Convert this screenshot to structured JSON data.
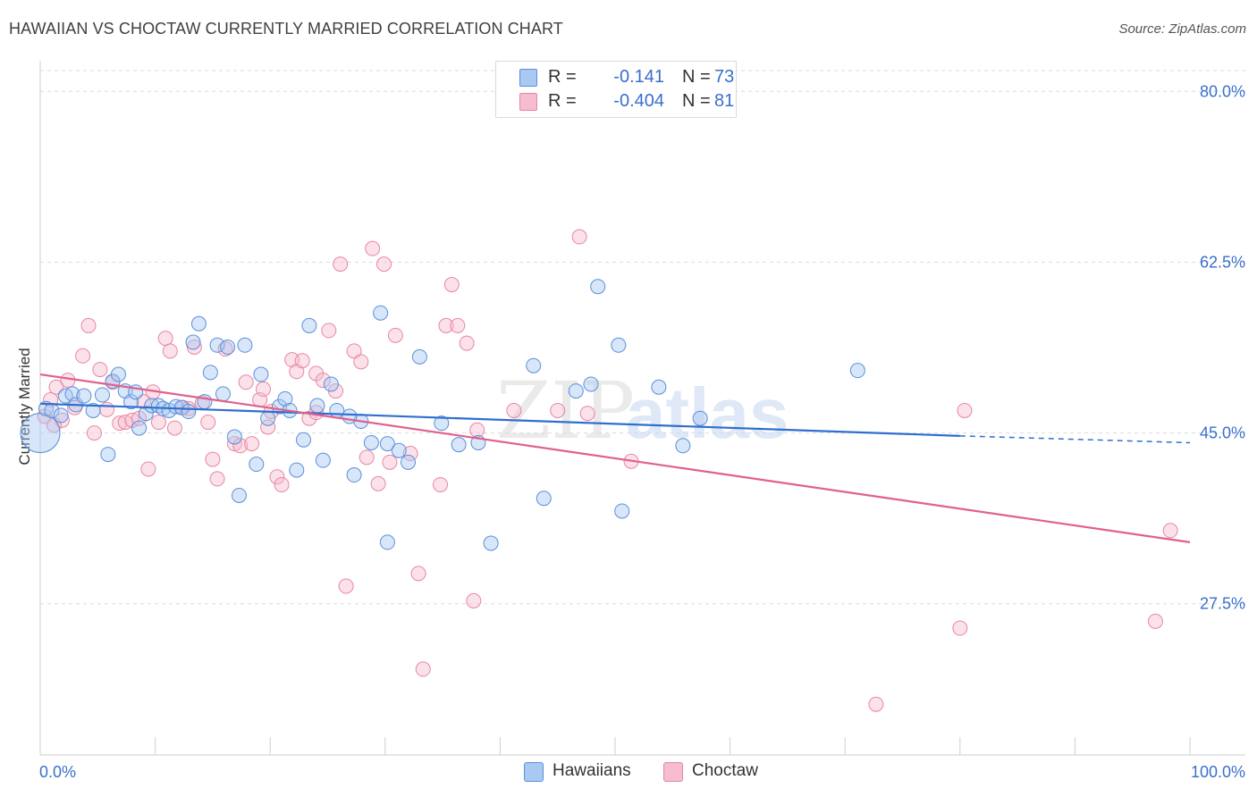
{
  "header": {
    "title": "HAWAIIAN VS CHOCTAW CURRENTLY MARRIED CORRELATION CHART",
    "source": "Source: ZipAtlas.com"
  },
  "legend": {
    "rows": [
      {
        "r_label": "R =",
        "r_value": "-0.141",
        "n_label": "N =",
        "n_value": "73"
      },
      {
        "r_label": "R =",
        "r_value": "-0.404",
        "n_label": "N =",
        "n_value": "81"
      }
    ]
  },
  "watermark": {
    "part1": "ZIP",
    "part2": "atlas"
  },
  "colors": {
    "hawaiians_fill": "#a9c8f2",
    "hawaiians_stroke": "#5b8fd9",
    "hawaiians_line": "#2e6fce",
    "choctaw_fill": "#f6bcd0",
    "choctaw_stroke": "#e8879f",
    "choctaw_line": "#e0608c",
    "tick_label": "#3a6fcc",
    "grid": "#dcdcdc"
  },
  "chart_data": {
    "type": "scatter",
    "title": "HAWAIIAN VS CHOCTAW CURRENTLY MARRIED CORRELATION CHART",
    "xlabel": "",
    "ylabel": "Currently Married",
    "xlim": [
      0,
      100
    ],
    "ylim": [
      12.0,
      82.5
    ],
    "x_tick_labels": [
      "0.0%",
      "100.0%"
    ],
    "y_ticks": [
      27.5,
      45.0,
      62.5,
      80.0
    ],
    "y_tick_labels": [
      "27.5%",
      "45.0%",
      "62.5%",
      "80.0%"
    ],
    "grid": "horizontal dashed",
    "legend_position": "top-center and bottom",
    "series": [
      {
        "name": "Hawaiians",
        "r": -0.141,
        "n": 73,
        "trend": {
          "x": [
            0,
            80
          ],
          "y": [
            48.0,
            44.7
          ],
          "dashed_to": [
            100,
            44.0
          ]
        },
        "points": [
          [
            0.2,
            45.0
          ],
          [
            0.5,
            47.5
          ],
          [
            1.0,
            47.3
          ],
          [
            1.8,
            46.8
          ],
          [
            2.2,
            48.8
          ],
          [
            2.8,
            49.0
          ],
          [
            3.1,
            47.9
          ],
          [
            3.8,
            48.8
          ],
          [
            4.6,
            47.3
          ],
          [
            5.4,
            48.9
          ],
          [
            5.9,
            42.8
          ],
          [
            6.3,
            50.3
          ],
          [
            6.8,
            51.0
          ],
          [
            7.4,
            49.3
          ],
          [
            7.9,
            48.2
          ],
          [
            8.3,
            49.2
          ],
          [
            8.6,
            45.5
          ],
          [
            9.2,
            47.0
          ],
          [
            9.7,
            47.8
          ],
          [
            10.3,
            47.8
          ],
          [
            10.7,
            47.5
          ],
          [
            11.2,
            47.3
          ],
          [
            11.8,
            47.7
          ],
          [
            12.3,
            47.6
          ],
          [
            12.9,
            47.2
          ],
          [
            13.3,
            54.3
          ],
          [
            13.8,
            56.2
          ],
          [
            14.3,
            48.2
          ],
          [
            14.8,
            51.2
          ],
          [
            15.4,
            54.0
          ],
          [
            15.9,
            49.0
          ],
          [
            16.3,
            53.8
          ],
          [
            16.9,
            44.6
          ],
          [
            17.3,
            38.6
          ],
          [
            17.8,
            54.0
          ],
          [
            18.8,
            41.8
          ],
          [
            19.2,
            51.0
          ],
          [
            19.8,
            46.5
          ],
          [
            20.8,
            47.7
          ],
          [
            21.3,
            48.5
          ],
          [
            21.7,
            47.3
          ],
          [
            22.3,
            41.2
          ],
          [
            22.9,
            44.3
          ],
          [
            23.4,
            56.0
          ],
          [
            24.1,
            47.8
          ],
          [
            24.6,
            42.2
          ],
          [
            25.3,
            50.0
          ],
          [
            25.8,
            47.3
          ],
          [
            27.3,
            40.7
          ],
          [
            27.9,
            46.2
          ],
          [
            28.8,
            44.0
          ],
          [
            29.6,
            57.3
          ],
          [
            30.2,
            43.9
          ],
          [
            31.2,
            43.2
          ],
          [
            32.0,
            42.0
          ],
          [
            33.0,
            52.8
          ],
          [
            34.9,
            46.0
          ],
          [
            36.4,
            43.8
          ],
          [
            38.1,
            44.0
          ],
          [
            39.2,
            33.7
          ],
          [
            42.9,
            51.9
          ],
          [
            43.8,
            38.3
          ],
          [
            46.6,
            49.3
          ],
          [
            47.9,
            50.0
          ],
          [
            48.5,
            60.0
          ],
          [
            50.3,
            54.0
          ],
          [
            50.6,
            37.0
          ],
          [
            53.8,
            49.7
          ],
          [
            55.9,
            43.7
          ],
          [
            57.4,
            46.5
          ],
          [
            71.1,
            51.4
          ],
          [
            30.2,
            33.8
          ],
          [
            26.9,
            46.7
          ]
        ]
      },
      {
        "name": "Choctaw",
        "r": -0.404,
        "n": 81,
        "trend": {
          "x": [
            0,
            100
          ],
          "y": [
            51.0,
            33.8
          ]
        },
        "points": [
          [
            0.4,
            46.7
          ],
          [
            0.9,
            48.4
          ],
          [
            1.4,
            49.7
          ],
          [
            1.9,
            46.3
          ],
          [
            2.4,
            50.4
          ],
          [
            3.0,
            47.6
          ],
          [
            3.7,
            52.9
          ],
          [
            4.2,
            56.0
          ],
          [
            4.7,
            45.0
          ],
          [
            5.2,
            51.5
          ],
          [
            5.8,
            47.4
          ],
          [
            6.3,
            50.2
          ],
          [
            6.9,
            46.0
          ],
          [
            7.4,
            46.1
          ],
          [
            8.0,
            46.3
          ],
          [
            8.6,
            46.5
          ],
          [
            9.0,
            48.2
          ],
          [
            9.4,
            41.3
          ],
          [
            9.8,
            49.2
          ],
          [
            10.3,
            46.1
          ],
          [
            10.9,
            54.7
          ],
          [
            11.3,
            53.4
          ],
          [
            11.7,
            45.5
          ],
          [
            12.4,
            47.6
          ],
          [
            12.9,
            47.5
          ],
          [
            13.4,
            53.8
          ],
          [
            14.1,
            48.1
          ],
          [
            14.6,
            46.1
          ],
          [
            15.0,
            42.3
          ],
          [
            15.4,
            40.3
          ],
          [
            16.1,
            53.6
          ],
          [
            16.9,
            43.9
          ],
          [
            17.4,
            43.7
          ],
          [
            17.9,
            50.2
          ],
          [
            18.4,
            43.9
          ],
          [
            19.1,
            48.4
          ],
          [
            19.8,
            45.6
          ],
          [
            20.1,
            47.2
          ],
          [
            20.6,
            40.5
          ],
          [
            21.0,
            39.7
          ],
          [
            21.9,
            52.5
          ],
          [
            22.3,
            51.3
          ],
          [
            22.8,
            52.4
          ],
          [
            23.4,
            46.5
          ],
          [
            24.0,
            51.1
          ],
          [
            24.6,
            50.4
          ],
          [
            25.1,
            55.5
          ],
          [
            25.7,
            49.3
          ],
          [
            26.1,
            62.3
          ],
          [
            26.6,
            29.3
          ],
          [
            27.3,
            53.4
          ],
          [
            27.9,
            52.3
          ],
          [
            28.4,
            42.5
          ],
          [
            28.9,
            63.9
          ],
          [
            29.4,
            39.8
          ],
          [
            29.9,
            62.3
          ],
          [
            30.4,
            42.0
          ],
          [
            30.9,
            55.0
          ],
          [
            32.2,
            42.9
          ],
          [
            32.9,
            30.6
          ],
          [
            33.3,
            20.8
          ],
          [
            34.8,
            39.7
          ],
          [
            35.3,
            56.0
          ],
          [
            35.8,
            60.2
          ],
          [
            36.3,
            56.0
          ],
          [
            37.1,
            54.2
          ],
          [
            37.7,
            27.8
          ],
          [
            38.0,
            45.3
          ],
          [
            41.2,
            47.3
          ],
          [
            45.0,
            47.3
          ],
          [
            46.9,
            65.1
          ],
          [
            47.6,
            47.0
          ],
          [
            51.4,
            42.1
          ],
          [
            72.7,
            17.2
          ],
          [
            80.0,
            25.0
          ],
          [
            80.4,
            47.3
          ],
          [
            97.0,
            25.7
          ],
          [
            98.3,
            35.0
          ],
          [
            1.2,
            45.8
          ],
          [
            24.0,
            47.1
          ],
          [
            19.4,
            49.5
          ]
        ]
      }
    ]
  },
  "bottom_legend": {
    "items": [
      {
        "label": "Hawaiians"
      },
      {
        "label": "Choctaw"
      }
    ]
  }
}
